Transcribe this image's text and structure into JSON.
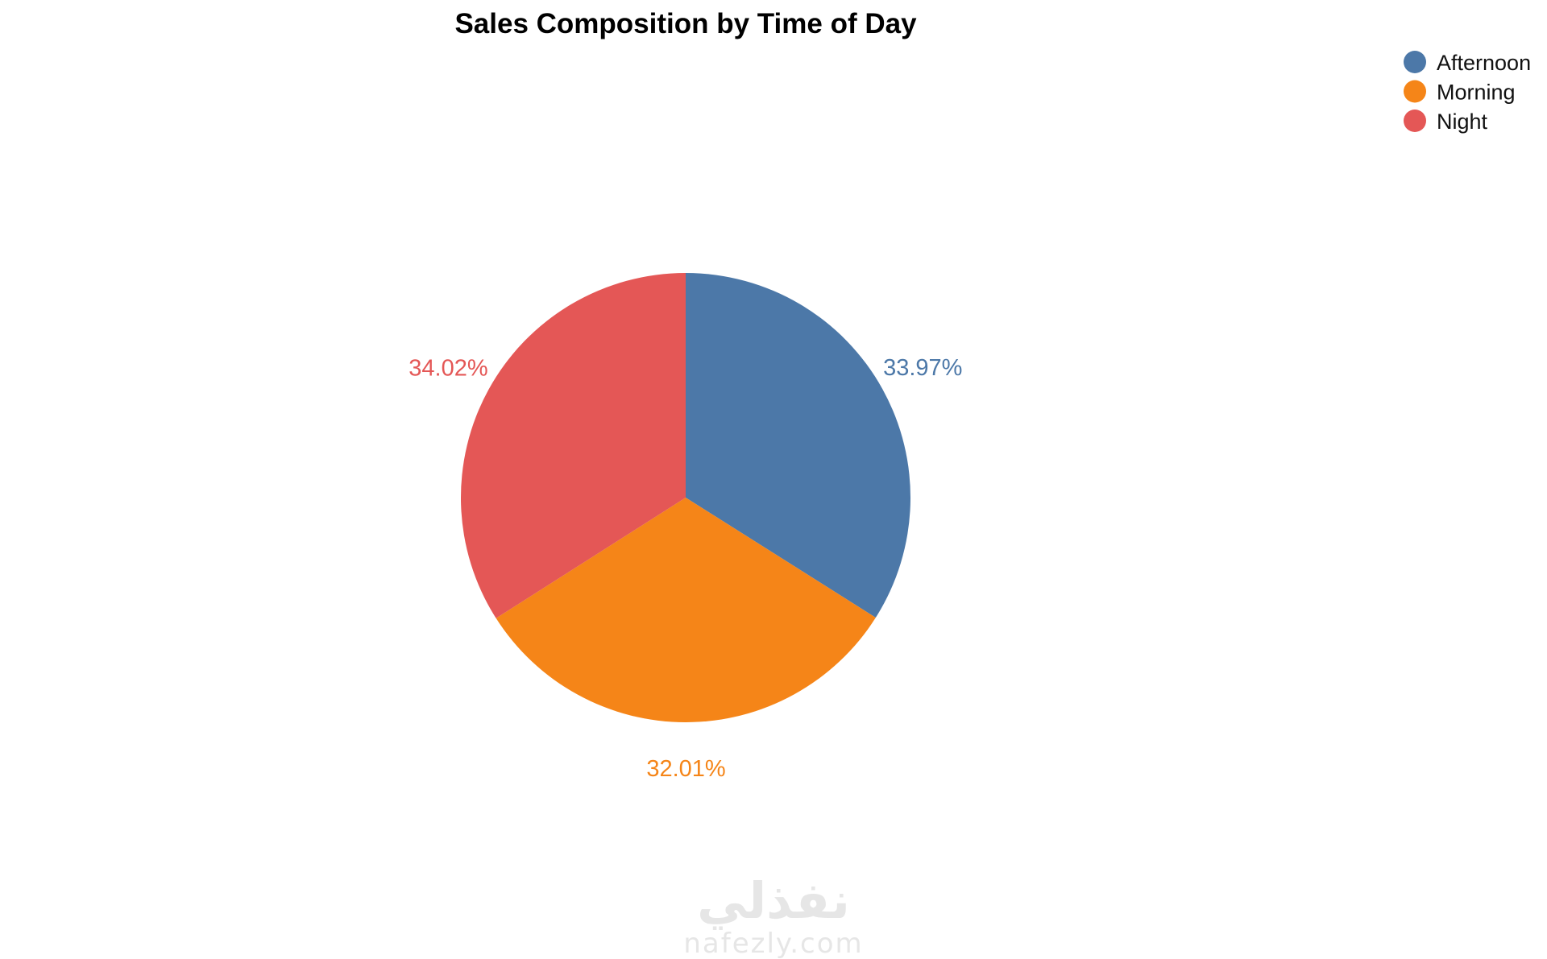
{
  "chart_data": {
    "type": "pie",
    "title": "Sales Composition by Time of Day",
    "slices": [
      {
        "label": "Afternoon",
        "value": 33.97,
        "display": "33.97%",
        "color": "#4c78a8"
      },
      {
        "label": "Morning",
        "value": 32.01,
        "display": "32.01%",
        "color": "#f58518"
      },
      {
        "label": "Night",
        "value": 34.02,
        "display": "34.02%",
        "color": "#e45756"
      }
    ],
    "start_angle": "12 o'clock",
    "direction": "clockwise",
    "legend": {
      "placement": "top-right",
      "entries": [
        "Afternoon",
        "Morning",
        "Night"
      ]
    }
  },
  "watermark": {
    "arabic": "نفذلي",
    "latin": "nafezly.com"
  }
}
